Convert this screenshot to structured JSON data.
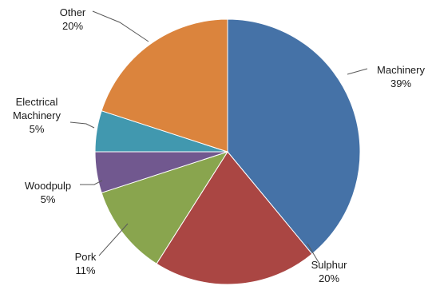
{
  "chart_data": {
    "type": "pie",
    "title": "",
    "legend": "none",
    "slices": [
      {
        "label": [
          "Machinery"
        ],
        "pct_label": "39%",
        "value": 39,
        "color": "#4572A7"
      },
      {
        "label": [
          "Sulphur"
        ],
        "pct_label": "20%",
        "value": 20,
        "color": "#AA4643"
      },
      {
        "label": [
          "Pork"
        ],
        "pct_label": "11%",
        "value": 11,
        "color": "#89A54E"
      },
      {
        "label": [
          "Woodpulp"
        ],
        "pct_label": "5%",
        "value": 5,
        "color": "#71588F"
      },
      {
        "label": [
          "Electrical",
          "Machinery"
        ],
        "pct_label": "5%",
        "value": 5,
        "color": "#4198AF"
      },
      {
        "label": [
          "Other"
        ],
        "pct_label": "20%",
        "value": 20,
        "color": "#DB843D"
      }
    ]
  }
}
